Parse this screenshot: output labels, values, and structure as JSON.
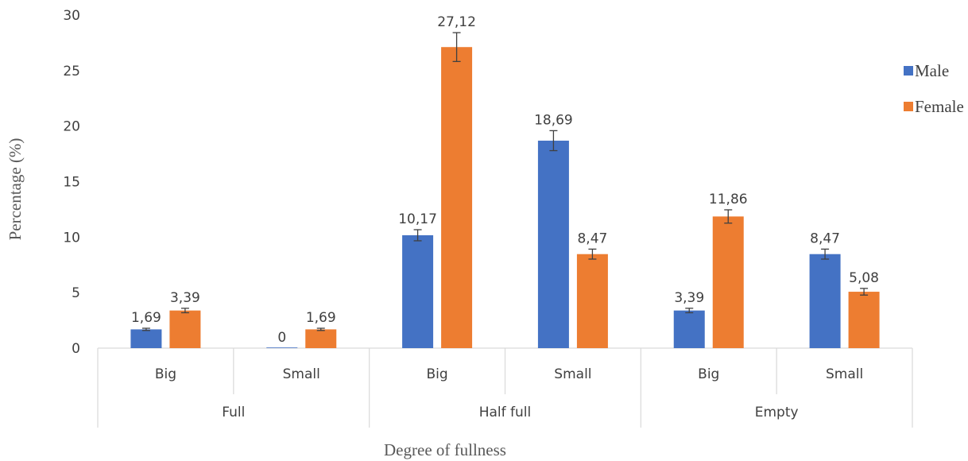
{
  "chart_data": {
    "type": "bar",
    "xlabel": "Degree of fullness",
    "ylabel": "Percentage (%)",
    "ylim": [
      0,
      30
    ],
    "yticks": [
      0,
      5,
      10,
      15,
      20,
      25,
      30
    ],
    "groups": [
      {
        "label": "Full",
        "categories": [
          "Big",
          "Small"
        ]
      },
      {
        "label": "Half full",
        "categories": [
          "Big",
          "Small"
        ]
      },
      {
        "label": "Empty",
        "categories": [
          "Big",
          "Small"
        ]
      }
    ],
    "categories": [
      "Big",
      "Small",
      "Big",
      "Small",
      "Big",
      "Small"
    ],
    "series": [
      {
        "name": "Male",
        "color": "#4472C4",
        "values": [
          1.69,
          0,
          10.17,
          18.69,
          3.39,
          8.47
        ],
        "labels": [
          "1,69",
          "0",
          "10,17",
          "18,69",
          "3,39",
          "8,47"
        ],
        "errors": [
          0.1,
          0,
          0.5,
          0.9,
          0.2,
          0.45
        ]
      },
      {
        "name": "Female",
        "color": "#ED7D31",
        "values": [
          3.39,
          1.69,
          27.12,
          8.47,
          11.86,
          5.08
        ],
        "labels": [
          "3,39",
          "1,69",
          "27,12",
          "8,47",
          "11,86",
          "5,08"
        ],
        "errors": [
          0.2,
          0.1,
          1.3,
          0.45,
          0.6,
          0.3
        ]
      }
    ],
    "legend_position": "right",
    "grid": false,
    "error_bars": true
  }
}
